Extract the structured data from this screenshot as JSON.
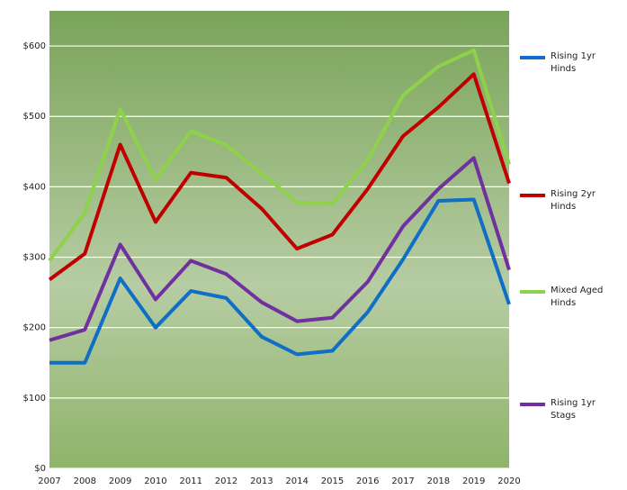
{
  "chart_data": {
    "type": "line",
    "x": [
      2007,
      2008,
      2009,
      2010,
      2011,
      2012,
      2013,
      2014,
      2015,
      2016,
      2017,
      2018,
      2019,
      2020
    ],
    "xlim": [
      2007,
      2020
    ],
    "xticks": [
      2007,
      2008,
      2009,
      2010,
      2011,
      2012,
      2013,
      2014,
      2015,
      2016,
      2017,
      2018,
      2019,
      2020
    ],
    "ylim": [
      0,
      650
    ],
    "yticks": [
      {
        "value": 0,
        "label": "$0"
      },
      {
        "value": 100,
        "label": "$100"
      },
      {
        "value": 200,
        "label": "$200"
      },
      {
        "value": 300,
        "label": "$300"
      },
      {
        "value": 400,
        "label": "$400"
      },
      {
        "value": 500,
        "label": "$500"
      },
      {
        "value": 600,
        "label": "$600"
      }
    ],
    "grid": true,
    "series": [
      {
        "name": "Rising 1yr Hinds",
        "color": "#0f6fc6",
        "values": [
          150,
          150,
          270,
          200,
          252,
          242,
          187,
          162,
          167,
          222,
          297,
          380,
          382,
          233
        ]
      },
      {
        "name": "Rising 2yr Hinds",
        "color": "#c00000",
        "values": [
          268,
          305,
          460,
          350,
          420,
          413,
          369,
          312,
          332,
          397,
          472,
          513,
          560,
          405
        ]
      },
      {
        "name": "Mixed Aged Hinds",
        "color": "#8ed14b",
        "values": [
          295,
          363,
          510,
          410,
          479,
          459,
          419,
          378,
          376,
          438,
          530,
          571,
          594,
          432
        ]
      },
      {
        "name": "Rising 1yr Stags",
        "color": "#7030a0",
        "values": [
          182,
          197,
          318,
          240,
          295,
          276,
          236,
          209,
          214,
          265,
          344,
          397,
          441,
          282
        ]
      }
    ]
  }
}
